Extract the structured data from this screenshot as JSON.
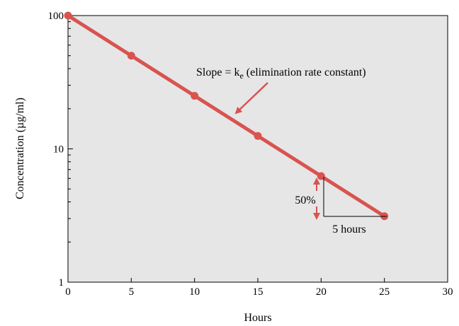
{
  "chart_data": {
    "type": "line",
    "xlabel": "Hours",
    "ylabel": "Concentration (µg/ml)",
    "x_scale": "linear",
    "y_scale": "log",
    "xlim": [
      0,
      30
    ],
    "ylim": [
      1,
      100
    ],
    "x_ticks": [
      "0",
      "5",
      "10",
      "15",
      "20",
      "25",
      "30"
    ],
    "y_ticks": [
      "1",
      "10",
      "100"
    ],
    "grid": false,
    "legend": "none",
    "series": [
      {
        "x": [
          0,
          5,
          10,
          15,
          20,
          25
        ],
        "y": [
          100,
          50,
          25,
          12.5,
          6.25,
          3.125
        ],
        "color": "#d9534f"
      }
    ],
    "annotations": {
      "slope_prefix": "Slope = k",
      "slope_sub": "e",
      "slope_suffix": " (elimination rate constant)",
      "percent": "50%",
      "hours": "5 hours"
    },
    "colors": {
      "plot_background": "#e6e6e6",
      "line": "#d9534f",
      "arrow": "#d9534f"
    }
  }
}
